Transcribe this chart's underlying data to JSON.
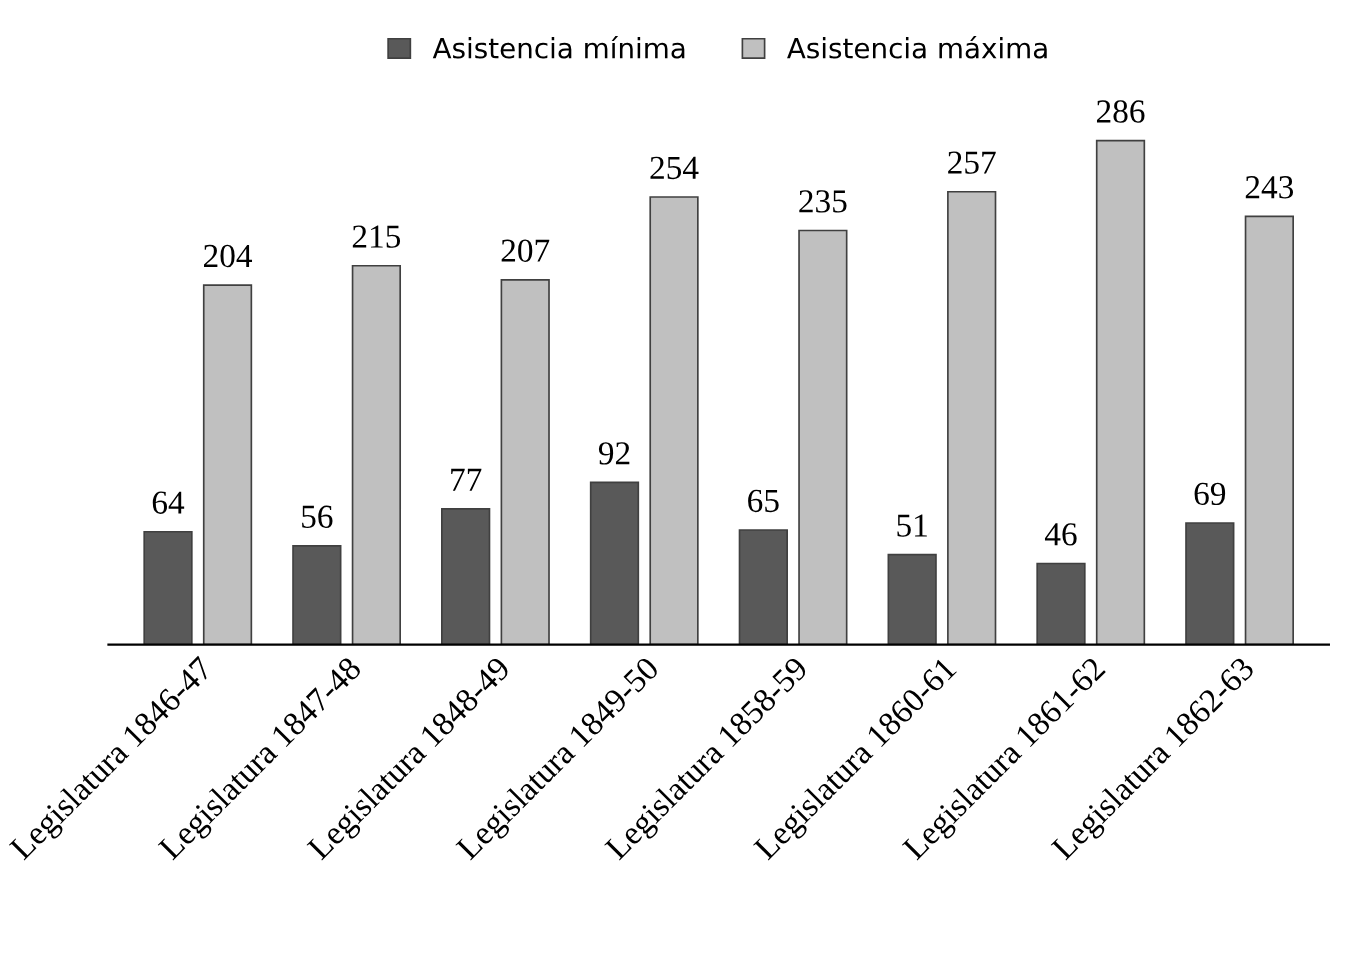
{
  "chart_data": {
    "type": "bar",
    "categories": [
      "Legislatura 1846-47",
      "Legislatura 1847-48",
      "Legislatura 1848-49",
      "Legislatura 1849-50",
      "Legislatura 1858-59",
      "Legislatura 1860-61",
      "Legislatura 1861-62",
      "Legislatura 1862-63"
    ],
    "series": [
      {
        "name": "Asistencia mínima",
        "color": "#595959",
        "values": [
          64,
          56,
          77,
          92,
          65,
          51,
          46,
          69
        ]
      },
      {
        "name": "Asistencia máxima",
        "color": "#c0c0c0",
        "values": [
          204,
          215,
          207,
          254,
          235,
          257,
          286,
          243
        ]
      }
    ],
    "data_labels": true,
    "legend": "top",
    "grid": false
  }
}
